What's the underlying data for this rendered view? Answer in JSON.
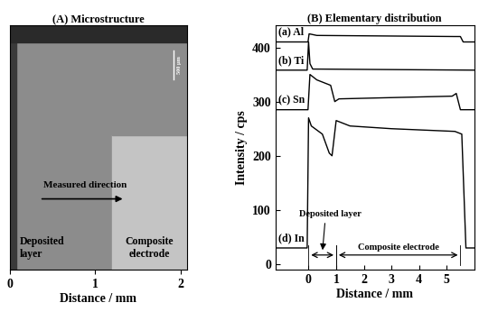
{
  "chart_data": [
    {
      "type": "image",
      "title": "(A) Microstructure",
      "x_label": "Distance / mm",
      "xlim": [
        0,
        2.07
      ],
      "xticks": [
        0,
        1,
        2
      ],
      "regions": [
        {
          "name": "Deposited layer",
          "x": [
            0,
            1.2
          ],
          "color": "#8c8c8c"
        },
        {
          "name": "Composite electrode",
          "x": [
            1.2,
            2.07
          ],
          "color": "#c4c4c4"
        }
      ],
      "annotations": [
        "Measured direction"
      ],
      "scale_bar": "500 μm"
    },
    {
      "type": "line",
      "title": "(B) Elementary distribution",
      "x_label": "Distance / mm",
      "y_label": "Intensity / cps",
      "xlim": [
        -1.2,
        6.0
      ],
      "xticks": [
        0,
        1,
        2,
        3,
        4,
        5
      ],
      "ylim": [
        -10,
        440
      ],
      "yticks": [
        0,
        100,
        200,
        300,
        400
      ],
      "series": [
        {
          "name": "(a) Al",
          "color": "#000000",
          "x": [
            -1.2,
            -0.02,
            0.02,
            0.3,
            5.3,
            5.5,
            5.6,
            6.0
          ],
          "values": [
            410,
            410,
            425,
            422,
            420,
            420,
            410,
            410
          ]
        },
        {
          "name": "(b) Ti",
          "color": "#000000",
          "x": [
            -1.2,
            -0.05,
            0.0,
            0.05,
            0.15,
            6.0
          ],
          "values": [
            358,
            358,
            410,
            370,
            360,
            358
          ]
        },
        {
          "name": "(c) Sn",
          "color": "#000000",
          "x": [
            -1.2,
            -0.02,
            0.05,
            0.3,
            0.8,
            0.95,
            1.1,
            5.2,
            5.35,
            5.5,
            6.0
          ],
          "values": [
            285,
            285,
            350,
            340,
            330,
            300,
            305,
            310,
            315,
            285,
            285
          ]
        },
        {
          "name": "(d) In",
          "color": "#000000",
          "x": [
            -1.2,
            -0.05,
            0.0,
            0.1,
            0.5,
            0.75,
            0.85,
            1.0,
            1.5,
            3.0,
            5.3,
            5.55,
            5.7,
            6.0
          ],
          "values": [
            30,
            30,
            270,
            255,
            240,
            205,
            200,
            265,
            255,
            250,
            245,
            240,
            30,
            30
          ]
        }
      ],
      "spans": [
        {
          "label": "Deposited layer",
          "x": [
            0,
            1.0
          ]
        },
        {
          "label": "Composite electrode",
          "x": [
            1.0,
            5.5
          ]
        }
      ]
    }
  ]
}
